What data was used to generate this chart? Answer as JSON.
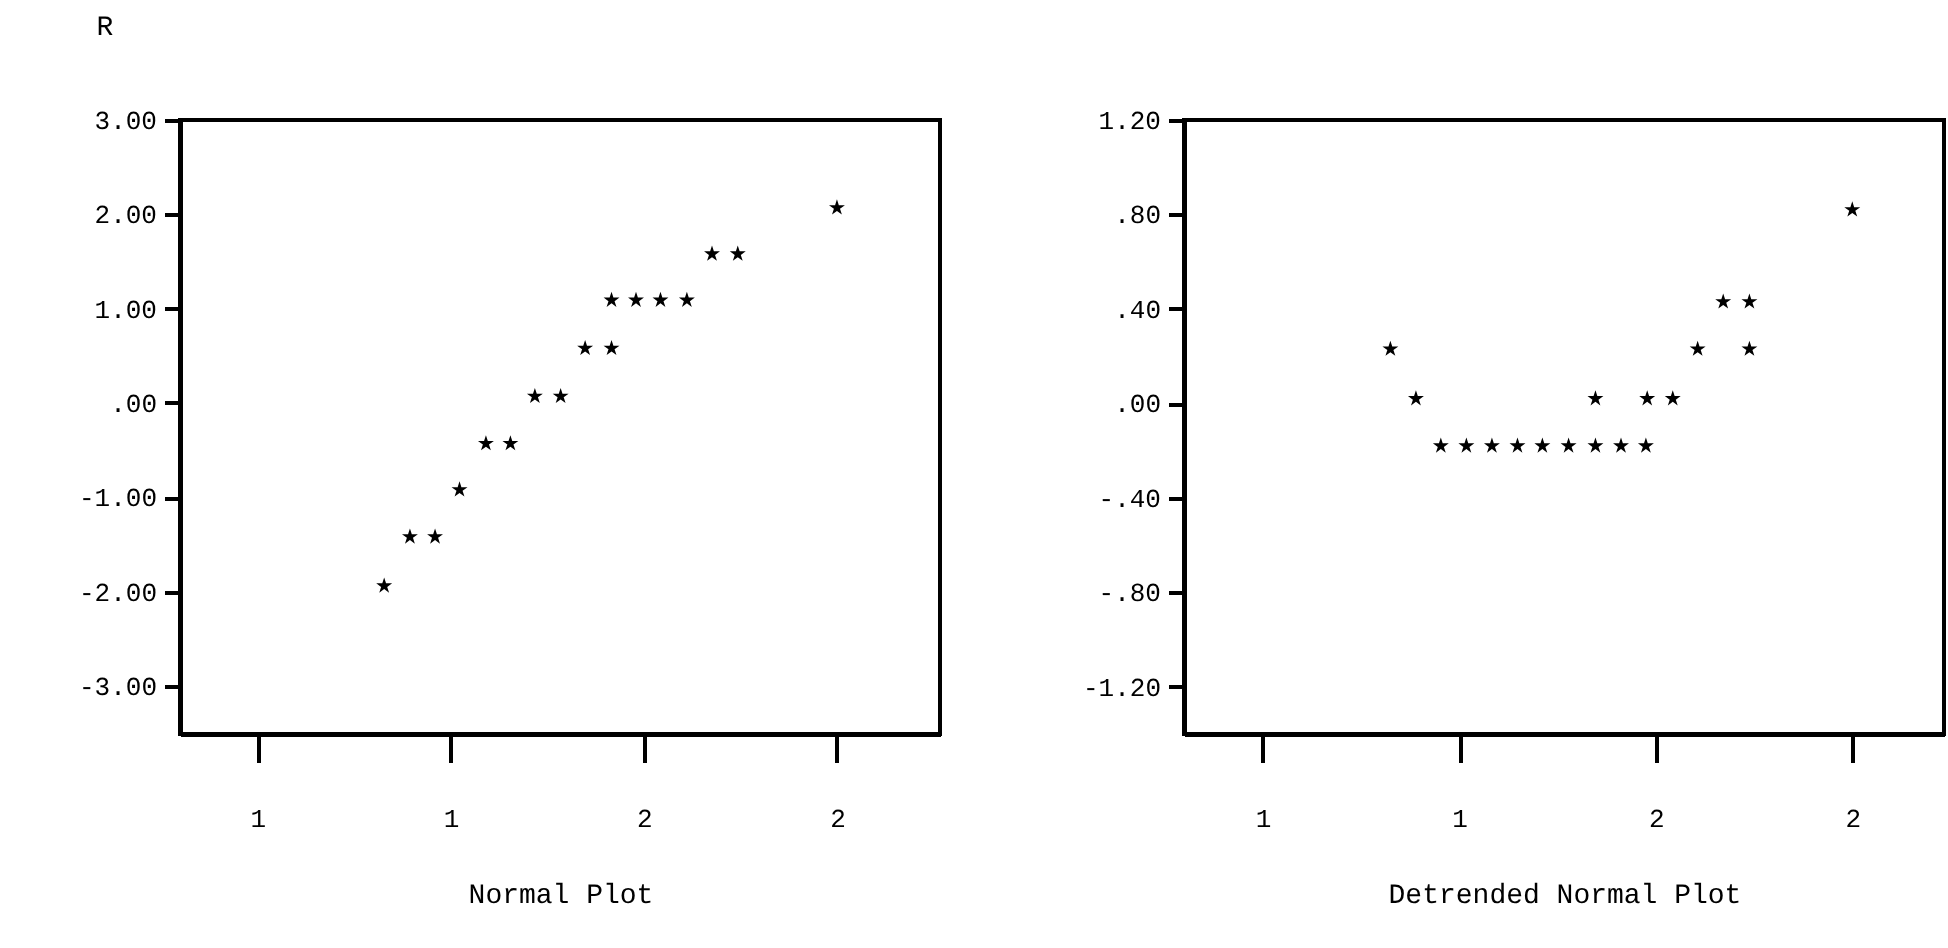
{
  "chart_data": [
    {
      "type": "scatter",
      "ylabel": "R",
      "xlabel": "Normal Plot",
      "marker": "star",
      "grid": false,
      "legend": false,
      "xlim": [
        0.88,
        2.06
      ],
      "xticks": [
        {
          "value": 1.0,
          "label": "1"
        },
        {
          "value": 1.3,
          "label": "1"
        },
        {
          "value": 1.6,
          "label": "2"
        },
        {
          "value": 1.9,
          "label": "2"
        }
      ],
      "ylim": [
        -3.51,
        3.0
      ],
      "yticks": [
        {
          "value": 3,
          "label": "3.00"
        },
        {
          "value": 2,
          "label": "2.00"
        },
        {
          "value": 1,
          "label": "1.00"
        },
        {
          "value": 0,
          "label": ".00"
        },
        {
          "value": -1,
          "label": "-1.00"
        },
        {
          "value": -2,
          "label": "-2.00"
        },
        {
          "value": -3,
          "label": "-3.00"
        }
      ],
      "series": [
        {
          "color": "#000000",
          "x": [
            1.197,
            1.237,
            1.276,
            1.314,
            1.355,
            1.393,
            1.431,
            1.471,
            1.509,
            1.55,
            1.55,
            1.588,
            1.626,
            1.667,
            1.706,
            1.746,
            1.9
          ],
          "values": [
            -1.94,
            -1.42,
            -1.42,
            -0.92,
            -0.43,
            -0.43,
            0.07,
            0.07,
            0.58,
            0.58,
            1.09,
            1.09,
            1.09,
            1.09,
            1.58,
            1.58,
            2.07
          ]
        }
      ]
    },
    {
      "type": "scatter",
      "xlabel": "Detrended Normal Plot",
      "marker": "star",
      "grid": false,
      "legend": false,
      "xlim": [
        0.88,
        2.04
      ],
      "xticks": [
        {
          "value": 1.0,
          "label": "1"
        },
        {
          "value": 1.3,
          "label": "1"
        },
        {
          "value": 1.6,
          "label": "2"
        },
        {
          "value": 1.9,
          "label": "2"
        }
      ],
      "ylim": [
        -1.4,
        1.2
      ],
      "yticks": [
        {
          "value": 1.2,
          "label": "1.20"
        },
        {
          "value": 0.8,
          "label": ".80"
        },
        {
          "value": 0.4,
          "label": ".40"
        },
        {
          "value": 0,
          "label": ".00"
        },
        {
          "value": -0.4,
          "label": "-.40"
        },
        {
          "value": -0.8,
          "label": "-.80"
        },
        {
          "value": -1.2,
          "label": "-1.20"
        }
      ],
      "series": [
        {
          "color": "#000000",
          "x": [
            1.195,
            1.234,
            1.272,
            1.311,
            1.35,
            1.389,
            1.427,
            1.467,
            1.508,
            1.547,
            1.585,
            1.508,
            1.587,
            1.626,
            1.664,
            1.703,
            1.743,
            1.743,
            1.9
          ],
          "values": [
            0.23,
            0.02,
            -0.18,
            -0.18,
            -0.18,
            -0.18,
            -0.18,
            -0.18,
            -0.18,
            -0.18,
            -0.18,
            0.02,
            0.02,
            0.02,
            0.23,
            0.43,
            0.43,
            0.23,
            0.82
          ]
        }
      ]
    }
  ]
}
